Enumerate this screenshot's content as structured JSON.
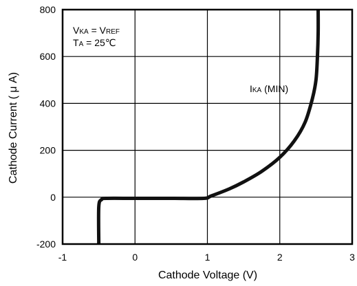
{
  "chart_data": {
    "type": "line",
    "xlabel": "Cathode Voltage (V)",
    "ylabel": "Cathode Current ( μ A)",
    "xlim": [
      -1,
      3
    ],
    "ylim": [
      -200,
      800
    ],
    "x_ticks": [
      -1,
      0,
      1,
      2,
      3
    ],
    "y_ticks": [
      -200,
      0,
      200,
      400,
      600,
      800
    ],
    "x_tick_labels": [
      "-1",
      "0",
      "1",
      "2",
      "3"
    ],
    "y_tick_labels": [
      "-200",
      "0",
      "200",
      "400",
      "600",
      "800"
    ],
    "grid": true,
    "conditions": {
      "line1": {
        "main": "V",
        "sub1": "KA",
        "mid": " = V",
        "sub2": "REF"
      },
      "line2": {
        "main": "T",
        "sub1": "A",
        "mid": " = 25℃"
      }
    },
    "series": [
      {
        "label_main": "I",
        "label_sub": "KA",
        "label_rest": " (MIN)",
        "color": "#111111",
        "points": [
          [
            -0.5,
            -200
          ],
          [
            -0.5,
            -40
          ],
          [
            -0.46,
            -10
          ],
          [
            -0.4,
            -5
          ],
          [
            0.0,
            -5
          ],
          [
            0.5,
            -5
          ],
          [
            0.95,
            -5
          ],
          [
            1.05,
            5
          ],
          [
            1.3,
            35
          ],
          [
            1.5,
            65
          ],
          [
            1.75,
            110
          ],
          [
            2.0,
            170
          ],
          [
            2.2,
            240
          ],
          [
            2.35,
            320
          ],
          [
            2.45,
            420
          ],
          [
            2.5,
            500
          ],
          [
            2.52,
            600
          ],
          [
            2.53,
            700
          ],
          [
            2.53,
            800
          ]
        ]
      }
    ]
  }
}
